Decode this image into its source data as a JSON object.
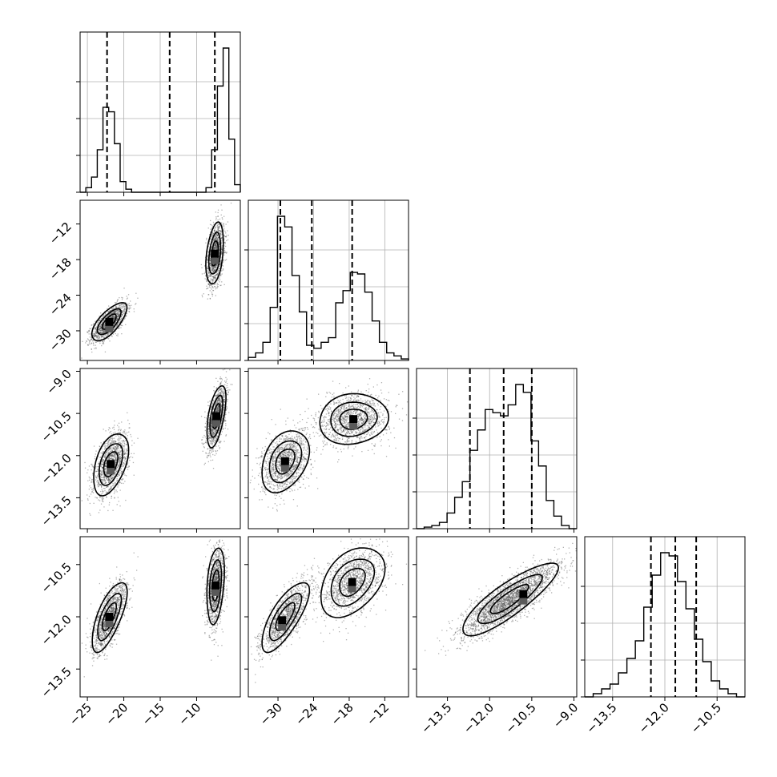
{
  "chart_data": {
    "type": "corner",
    "colors": {
      "ink": "#000000",
      "grid": "#b0b0b0",
      "points": "#555555",
      "background": "#ffffff"
    },
    "grid": true,
    "parameters": [
      {
        "range": [
          -26,
          -4
        ],
        "ticks": [
          -25,
          -20,
          -15,
          -10
        ],
        "tick_labels": [
          "−25",
          "−20",
          "−15",
          "−10"
        ],
        "quantiles": [
          -22.3,
          -13.7,
          -7.5
        ],
        "hist": [
          0,
          0.03,
          0.1,
          0.28,
          0.56,
          0.53,
          0.32,
          0.07,
          0.02,
          0,
          0,
          0,
          0,
          0,
          0,
          0,
          0,
          0,
          0,
          0,
          0,
          0,
          0.03,
          0.28,
          0.7,
          0.95,
          0.35,
          0.05
        ]
      },
      {
        "range": [
          -35,
          -8
        ],
        "ticks": [
          -30,
          -24,
          -18,
          -12
        ],
        "tick_labels": [
          "−30",
          "−24",
          "−18",
          "−12"
        ],
        "quantiles": [
          -29.6,
          -24.3,
          -17.5
        ],
        "hist": [
          0.02,
          0.05,
          0.12,
          0.35,
          0.95,
          0.88,
          0.56,
          0.32,
          0.1,
          0.08,
          0.12,
          0.15,
          0.38,
          0.46,
          0.58,
          0.57,
          0.45,
          0.26,
          0.12,
          0.05,
          0.03,
          0.01
        ]
      },
      {
        "range": [
          -14.6,
          -8.9
        ],
        "ticks": [
          -13.5,
          -12.0,
          -10.5,
          -9.0
        ],
        "tick_labels": [
          "−13.5",
          "−12.0",
          "−10.5",
          "−9.0"
        ],
        "quantiles": [
          -12.7,
          -11.5,
          -10.5
        ],
        "hist": [
          0,
          0.01,
          0.02,
          0.04,
          0.1,
          0.2,
          0.3,
          0.5,
          0.63,
          0.76,
          0.74,
          0.72,
          0.79,
          0.92,
          0.87,
          0.56,
          0.4,
          0.18,
          0.08,
          0.02,
          0.0
        ]
      },
      {
        "range": [
          -14.3,
          -9.7
        ],
        "ticks": [
          -13.5,
          -12.0,
          -10.5
        ],
        "tick_labels": [
          "−13.5",
          "−12.0",
          "−10.5"
        ],
        "quantiles": [
          -12.4,
          -11.7,
          -11.1
        ],
        "hist": [
          0,
          0.02,
          0.05,
          0.08,
          0.15,
          0.24,
          0.35,
          0.56,
          0.76,
          0.9,
          0.88,
          0.72,
          0.55,
          0.36,
          0.22,
          0.1,
          0.05,
          0.02,
          0.0
        ]
      }
    ],
    "pairs": [
      {
        "row": 1,
        "col": 0,
        "y_ticks": [
          -12,
          -18,
          -24,
          -30
        ],
        "y_tick_labels": [
          "−12",
          "−18",
          "−24",
          "−30"
        ],
        "modes": [
          {
            "cx": -22.0,
            "cy": -28.5,
            "sx": 1.2,
            "sy": 1.6,
            "rho": 0.7,
            "n": 1300,
            "peak": [
              -22.0,
              -28.5
            ]
          },
          {
            "cx": -7.5,
            "cy": -17.0,
            "sx": 0.6,
            "sy": 2.6,
            "rho": 0.35,
            "n": 1300,
            "peak": [
              -7.5,
              -17.0
            ]
          }
        ]
      },
      {
        "row": 2,
        "col": 0,
        "y_ticks": [
          -9.0,
          -10.5,
          -12.0,
          -13.5
        ],
        "y_tick_labels": [
          "−9.0",
          "−10.5",
          "−12.0",
          "−13.5"
        ],
        "modes": [
          {
            "cx": -21.8,
            "cy": -12.3,
            "sx": 1.2,
            "sy": 0.55,
            "rho": 0.45,
            "n": 1300,
            "peak": [
              -21.8,
              -12.3
            ]
          },
          {
            "cx": -7.3,
            "cy": -10.6,
            "sx": 0.65,
            "sy": 0.55,
            "rho": 0.55,
            "n": 1300,
            "peak": [
              -7.3,
              -10.6
            ]
          }
        ]
      },
      {
        "row": 2,
        "col": 1,
        "modes": [
          {
            "cx": -28.8,
            "cy": -12.2,
            "sx": 2.0,
            "sy": 0.55,
            "rho": 0.35,
            "n": 1300,
            "peak": [
              -28.8,
              -12.2
            ]
          },
          {
            "cx": -17.3,
            "cy": -10.7,
            "sx": 2.9,
            "sy": 0.45,
            "rho": 0.1,
            "n": 1300,
            "peak": [
              -17.3,
              -10.7
            ]
          }
        ]
      },
      {
        "row": 3,
        "col": 0,
        "y_ticks": [
          -10.5,
          -12.0,
          -13.5
        ],
        "y_tick_labels": [
          "−10.5",
          "−12.0",
          "−13.5"
        ],
        "modes": [
          {
            "cx": -22.0,
            "cy": -12.0,
            "sx": 1.2,
            "sy": 0.5,
            "rho": 0.7,
            "n": 1300,
            "peak": [
              -22.0,
              -12.0
            ]
          },
          {
            "cx": -7.4,
            "cy": -11.1,
            "sx": 0.6,
            "sy": 0.55,
            "rho": 0.3,
            "n": 1300,
            "peak": [
              -7.4,
              -11.1
            ]
          }
        ]
      },
      {
        "row": 3,
        "col": 1,
        "modes": [
          {
            "cx": -28.8,
            "cy": -12.0,
            "sx": 2.0,
            "sy": 0.5,
            "rho": 0.75,
            "n": 1300,
            "peak": [
              -29.3,
              -12.1
            ]
          },
          {
            "cx": -17.5,
            "cy": -11.0,
            "sx": 2.7,
            "sy": 0.5,
            "rho": 0.4,
            "n": 1300,
            "peak": [
              -17.5,
              -11.0
            ]
          }
        ]
      },
      {
        "row": 3,
        "col": 2,
        "modes": [
          {
            "cx": -11.3,
            "cy": -11.5,
            "sx": 0.85,
            "sy": 0.52,
            "rho": 0.85,
            "n": 2600,
            "peak": [
              -10.8,
              -11.35
            ]
          }
        ]
      }
    ]
  }
}
